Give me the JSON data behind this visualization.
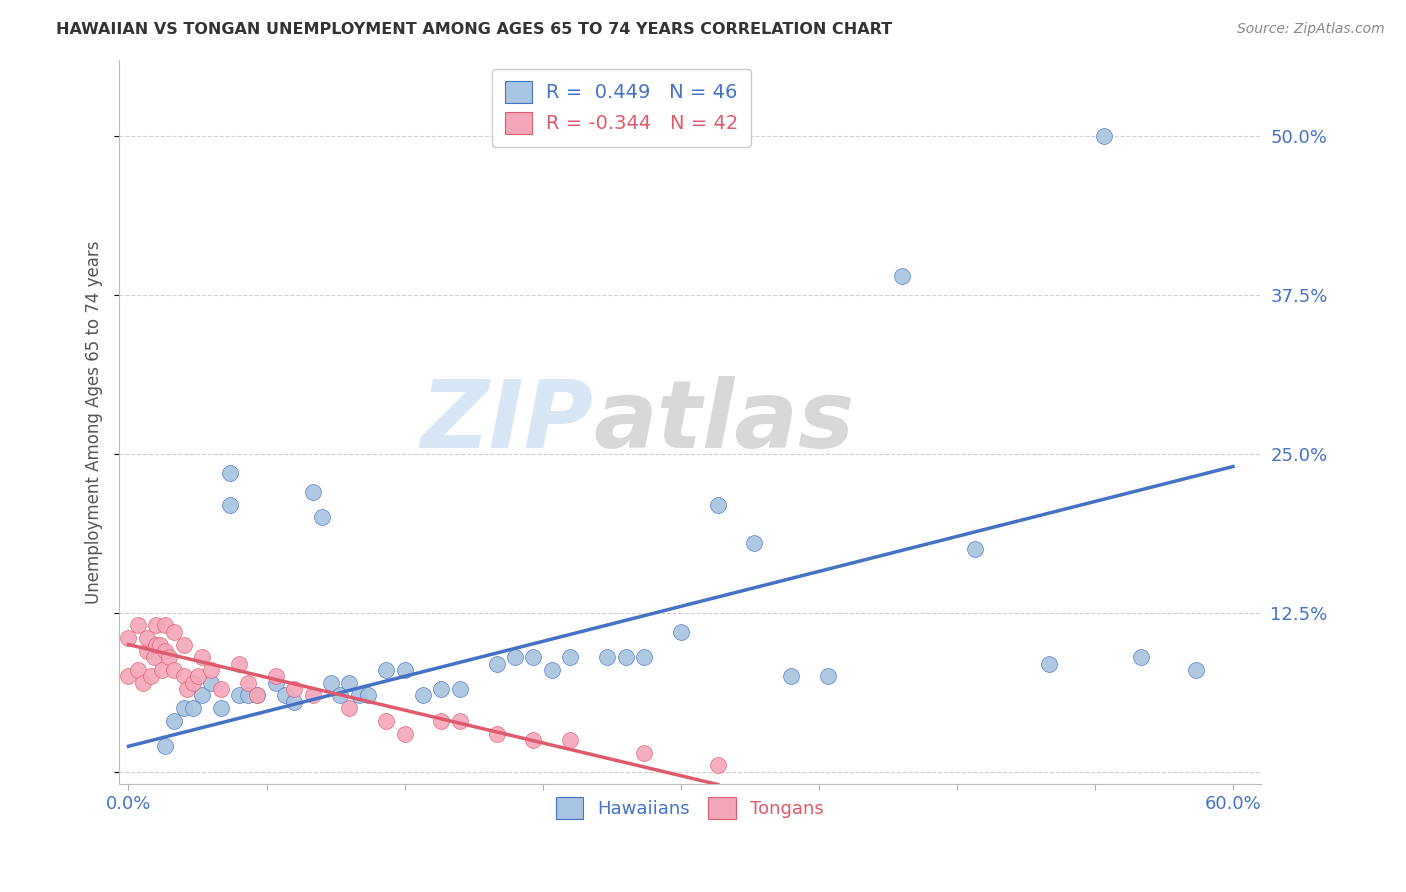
{
  "title": "HAWAIIAN VS TONGAN UNEMPLOYMENT AMONG AGES 65 TO 74 YEARS CORRELATION CHART",
  "source": "Source: ZipAtlas.com",
  "ylabel": "Unemployment Among Ages 65 to 74 years",
  "xlim": [
    -0.005,
    0.615
  ],
  "ylim": [
    -0.01,
    0.56
  ],
  "xticks": [
    0.0,
    0.075,
    0.15,
    0.225,
    0.3,
    0.375,
    0.45,
    0.525,
    0.6
  ],
  "xtick_labels_show": [
    "0.0%",
    "",
    "",
    "",
    "",
    "",
    "",
    "",
    "60.0%"
  ],
  "yticks": [
    0.0,
    0.125,
    0.25,
    0.375,
    0.5
  ],
  "ytick_labels": [
    "",
    "12.5%",
    "25.0%",
    "37.5%",
    "50.0%"
  ],
  "R_hawaiian": 0.449,
  "N_hawaiian": 46,
  "R_tongan": -0.344,
  "N_tongan": 42,
  "hawaiian_color": "#a8c4e0",
  "tongan_color": "#f4a7b9",
  "hawaiian_line_color": "#4472C4",
  "tongan_line_color": "#E05A6E",
  "legend_label_hawaiian": "Hawaiians",
  "legend_label_tongan": "Tongans",
  "hawaiian_points_x": [
    0.02,
    0.025,
    0.03,
    0.035,
    0.04,
    0.045,
    0.05,
    0.055,
    0.055,
    0.06,
    0.065,
    0.07,
    0.08,
    0.085,
    0.09,
    0.1,
    0.105,
    0.11,
    0.115,
    0.12,
    0.125,
    0.13,
    0.14,
    0.15,
    0.16,
    0.17,
    0.18,
    0.2,
    0.21,
    0.22,
    0.23,
    0.24,
    0.26,
    0.27,
    0.28,
    0.3,
    0.32,
    0.34,
    0.36,
    0.38,
    0.42,
    0.46,
    0.5,
    0.53,
    0.55,
    0.58
  ],
  "hawaiian_points_y": [
    0.02,
    0.04,
    0.05,
    0.05,
    0.06,
    0.07,
    0.05,
    0.21,
    0.235,
    0.06,
    0.06,
    0.06,
    0.07,
    0.06,
    0.055,
    0.22,
    0.2,
    0.07,
    0.06,
    0.07,
    0.06,
    0.06,
    0.08,
    0.08,
    0.06,
    0.065,
    0.065,
    0.085,
    0.09,
    0.09,
    0.08,
    0.09,
    0.09,
    0.09,
    0.09,
    0.11,
    0.21,
    0.18,
    0.075,
    0.075,
    0.39,
    0.175,
    0.085,
    0.5,
    0.09,
    0.08
  ],
  "tongan_points_x": [
    0.0,
    0.0,
    0.005,
    0.005,
    0.008,
    0.01,
    0.01,
    0.012,
    0.014,
    0.015,
    0.015,
    0.017,
    0.018,
    0.02,
    0.02,
    0.022,
    0.025,
    0.025,
    0.03,
    0.03,
    0.032,
    0.035,
    0.038,
    0.04,
    0.045,
    0.05,
    0.06,
    0.065,
    0.07,
    0.08,
    0.09,
    0.1,
    0.12,
    0.14,
    0.15,
    0.17,
    0.18,
    0.2,
    0.22,
    0.24,
    0.28,
    0.32
  ],
  "tongan_points_y": [
    0.075,
    0.105,
    0.08,
    0.115,
    0.07,
    0.095,
    0.105,
    0.075,
    0.09,
    0.115,
    0.1,
    0.1,
    0.08,
    0.115,
    0.095,
    0.09,
    0.11,
    0.08,
    0.075,
    0.1,
    0.065,
    0.07,
    0.075,
    0.09,
    0.08,
    0.065,
    0.085,
    0.07,
    0.06,
    0.075,
    0.065,
    0.06,
    0.05,
    0.04,
    0.03,
    0.04,
    0.04,
    0.03,
    0.025,
    0.025,
    0.015,
    0.005
  ],
  "watermark_zip": "ZIP",
  "watermark_atlas": "atlas",
  "background_color": "#ffffff",
  "grid_color": "#d0d0d0",
  "hawaiian_trendline": [
    0.0,
    0.6,
    0.02,
    0.24
  ],
  "tongan_trendline": [
    0.0,
    0.32,
    0.1,
    -0.01
  ]
}
